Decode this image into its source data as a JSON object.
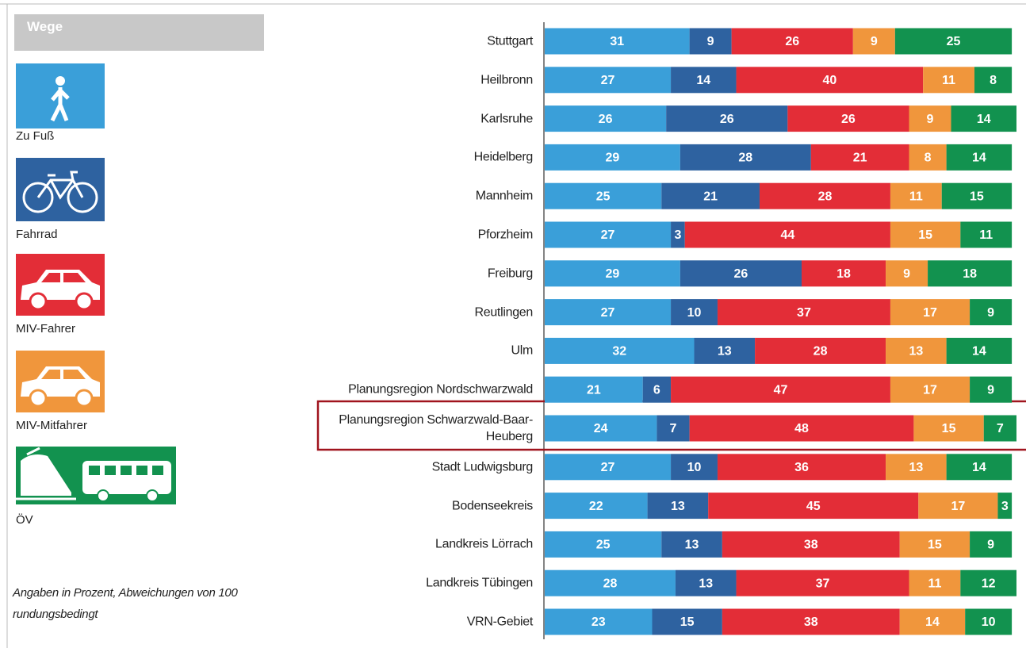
{
  "chart_data": {
    "type": "stacked-bar-horizontal",
    "legend_title": "Wege",
    "note": "Angaben in Prozent, Abweichungen von 100 rundungsbedingt",
    "categories": [
      "Stuttgart",
      "Heilbronn",
      "Karlsruhe",
      "Heidelberg",
      "Mannheim",
      "Pforzheim",
      "Freiburg",
      "Reutlingen",
      "Ulm",
      "Planungsregion Nordschwarzwald",
      "Planungsregion Schwarzwald-Baar-Heuberg",
      "Stadt Ludwigsburg",
      "Bodenseekreis",
      "Landkreis Lörrach",
      "Landkreis Tübingen",
      "VRN-Gebiet"
    ],
    "series": [
      {
        "name": "Zu Fuß",
        "color": "#3a9fd9",
        "values": [
          31,
          27,
          26,
          29,
          25,
          27,
          29,
          27,
          32,
          21,
          24,
          27,
          22,
          25,
          28,
          23
        ]
      },
      {
        "name": "Fahrrad",
        "color": "#2e62a0",
        "values": [
          9,
          14,
          26,
          28,
          21,
          3,
          26,
          10,
          13,
          6,
          7,
          10,
          13,
          13,
          13,
          15
        ]
      },
      {
        "name": "MIV-Fahrer",
        "color": "#e32d37",
        "values": [
          26,
          40,
          26,
          21,
          28,
          44,
          18,
          37,
          28,
          47,
          48,
          36,
          45,
          38,
          37,
          38
        ]
      },
      {
        "name": "MIV-Mitfahrer",
        "color": "#f0963c",
        "values": [
          9,
          11,
          9,
          8,
          11,
          15,
          9,
          17,
          13,
          17,
          15,
          13,
          17,
          15,
          11,
          14
        ]
      },
      {
        "name": "ÖV",
        "color": "#12924f",
        "values": [
          25,
          8,
          14,
          14,
          15,
          11,
          18,
          9,
          14,
          9,
          7,
          14,
          3,
          9,
          12,
          10
        ]
      }
    ]
  }
}
